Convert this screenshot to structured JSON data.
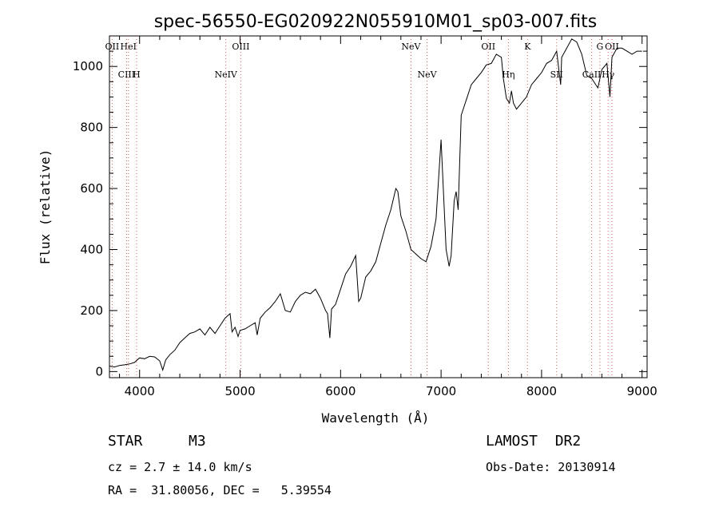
{
  "chart_data": {
    "type": "line",
    "title": "spec-56550-EG020922N055910M01_sp03-007.fits",
    "xlabel": "Wavelength (Å)",
    "ylabel": "Flux (relative)",
    "xlim": [
      3700,
      9050
    ],
    "ylim": [
      -20,
      1100
    ],
    "xticks": [
      4000,
      5000,
      6000,
      7000,
      8000,
      9000
    ],
    "yticks": [
      0,
      200,
      400,
      600,
      800,
      1000
    ],
    "line_color": "#000000",
    "marker_color": "#e06060",
    "spectrum": {
      "x": [
        3700,
        3750,
        3800,
        3850,
        3900,
        3950,
        4000,
        4050,
        4100,
        4150,
        4200,
        4230,
        4260,
        4300,
        4350,
        4400,
        4450,
        4500,
        4550,
        4600,
        4650,
        4700,
        4750,
        4800,
        4850,
        4900,
        4920,
        4950,
        4980,
        5000,
        5050,
        5100,
        5150,
        5170,
        5200,
        5250,
        5300,
        5350,
        5400,
        5450,
        5500,
        5550,
        5600,
        5650,
        5700,
        5750,
        5800,
        5850,
        5870,
        5893,
        5910,
        5950,
        6000,
        6050,
        6100,
        6150,
        6160,
        6180,
        6200,
        6250,
        6300,
        6350,
        6400,
        6450,
        6500,
        6550,
        6570,
        6600,
        6650,
        6700,
        6750,
        6800,
        6850,
        6900,
        6950,
        7000,
        7050,
        7080,
        7100,
        7130,
        7150,
        7170,
        7200,
        7250,
        7300,
        7350,
        7400,
        7450,
        7500,
        7550,
        7600,
        7620,
        7650,
        7680,
        7700,
        7720,
        7750,
        7800,
        7850,
        7900,
        7950,
        8000,
        8050,
        8100,
        8150,
        8190,
        8200,
        8250,
        8300,
        8350,
        8400,
        8450,
        8500,
        8540,
        8560,
        8600,
        8650,
        8680,
        8700,
        8750,
        8800,
        8850,
        8900,
        8950,
        9000
      ],
      "y": [
        18,
        15,
        20,
        22,
        25,
        30,
        45,
        42,
        50,
        48,
        35,
        5,
        38,
        55,
        70,
        95,
        110,
        125,
        130,
        140,
        120,
        145,
        125,
        150,
        175,
        190,
        130,
        145,
        115,
        135,
        140,
        150,
        160,
        120,
        175,
        195,
        210,
        230,
        255,
        200,
        195,
        230,
        250,
        260,
        255,
        270,
        240,
        200,
        190,
        110,
        205,
        220,
        270,
        320,
        345,
        380,
        330,
        230,
        240,
        310,
        330,
        360,
        420,
        480,
        530,
        600,
        590,
        510,
        460,
        400,
        385,
        370,
        360,
        410,
        500,
        760,
        400,
        345,
        380,
        560,
        590,
        530,
        840,
        890,
        940,
        960,
        980,
        1005,
        1010,
        1040,
        1030,
        960,
        895,
        880,
        920,
        880,
        860,
        880,
        900,
        940,
        960,
        980,
        1010,
        1020,
        1050,
        940,
        1030,
        1060,
        1090,
        1080,
        1040,
        970,
        960,
        940,
        930,
        990,
        1010,
        900,
        1030,
        1060,
        1060,
        1050,
        1040,
        1050,
        1050
      ]
    },
    "line_markers": [
      {
        "label": "OII",
        "x": 3727,
        "row": "top"
      },
      {
        "label": "HeI",
        "x": 3889,
        "row": "top"
      },
      {
        "label": "CIII",
        "x": 3870,
        "row": "bottom"
      },
      {
        "label": "H",
        "x": 3970,
        "row": "bottom"
      },
      {
        "label": "NeIV",
        "x": 4858,
        "row": "bottom"
      },
      {
        "label": "OIII",
        "x": 5007,
        "row": "top"
      },
      {
        "label": "NeV",
        "x": 6700,
        "row": "top"
      },
      {
        "label": "NeV",
        "x": 6860,
        "row": "bottom"
      },
      {
        "label": "OII",
        "x": 7470,
        "row": "top"
      },
      {
        "label": "Hη",
        "x": 7670,
        "row": "bottom"
      },
      {
        "label": "K",
        "x": 7860,
        "row": "top"
      },
      {
        "label": "SII",
        "x": 8150,
        "row": "bottom"
      },
      {
        "label": "G",
        "x": 8580,
        "row": "top"
      },
      {
        "label": "OII",
        "x": 8700,
        "row": "top"
      },
      {
        "label": "CaII",
        "x": 8498,
        "row": "bottom"
      },
      {
        "label": "Hγ",
        "x": 8662,
        "row": "bottom"
      }
    ]
  },
  "info": {
    "object_class": "STAR",
    "subclass": "M3",
    "survey": "LAMOST  DR2",
    "cz": "cz = 2.7 ± 14.0 km/s",
    "obs_date": "Obs-Date: 20130914",
    "coords": "RA =  31.80056, DEC =   5.39554"
  }
}
